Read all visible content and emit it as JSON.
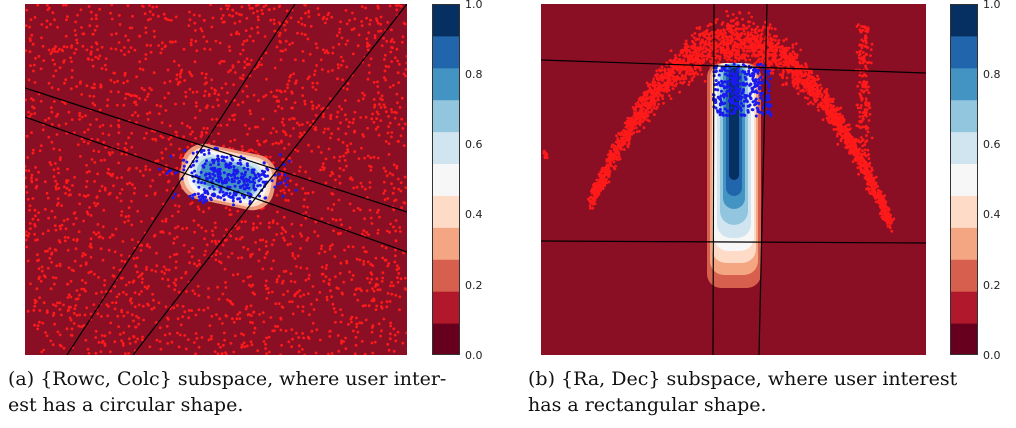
{
  "colors": {
    "background_fill": "#8a0f25",
    "points_outside": "#ff1a1a",
    "points_inside": "#1a1aee",
    "boundary": "#000000"
  },
  "colorbar": {
    "ticks": [
      "0.0",
      "0.2",
      "0.4",
      "0.6",
      "0.8",
      "1.0"
    ],
    "levels": [
      "#67001f",
      "#b2182b",
      "#d6604d",
      "#f4a582",
      "#fddbc7",
      "#f7f7f7",
      "#d1e5f0",
      "#92c5de",
      "#4393c3",
      "#2166ac",
      "#053061"
    ]
  },
  "chart_data": [
    {
      "type": "scatter",
      "title": "",
      "xlabel": "",
      "ylabel": "",
      "subspace": [
        "Rowc",
        "Colc"
      ],
      "interest_shape": "circular",
      "series": [
        {
          "values": "uniform scatter of red points outside user interest region"
        },
        {
          "values": "blue points inside a small rotated region near the center"
        }
      ],
      "colorbar_range": [
        0.0,
        1.0
      ],
      "caption": "(a) {Rowc, Colc} subspace, where user interest has a circular shape."
    },
    {
      "type": "scatter",
      "title": "",
      "xlabel": "",
      "ylabel": "",
      "subspace": [
        "Ra",
        "Dec"
      ],
      "interest_shape": "rectangular",
      "series": [
        {
          "values": "arc-shaped band of red points"
        },
        {
          "values": "blue points in rectangle near top center"
        }
      ],
      "colorbar_range": [
        0.0,
        1.0
      ],
      "caption": "(b) {Ra, Dec} subspace, where user interest has a rectangular shape."
    }
  ],
  "captions": {
    "a_line1": "(a) {Rowc, Colc} subspace, where user inter-",
    "a_line2": "est has a circular shape.",
    "b_line1": "(b) {Ra, Dec} subspace, where user interest",
    "b_line2": "has a rectangular shape."
  }
}
